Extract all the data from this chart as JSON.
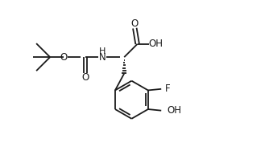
{
  "bg_color": "#ffffff",
  "line_color": "#1a1a1a",
  "line_width": 1.3,
  "font_size": 8.5,
  "figsize": [
    3.34,
    1.98
  ],
  "dpi": 100,
  "xlim": [
    0,
    10
  ],
  "ylim": [
    0,
    6
  ]
}
